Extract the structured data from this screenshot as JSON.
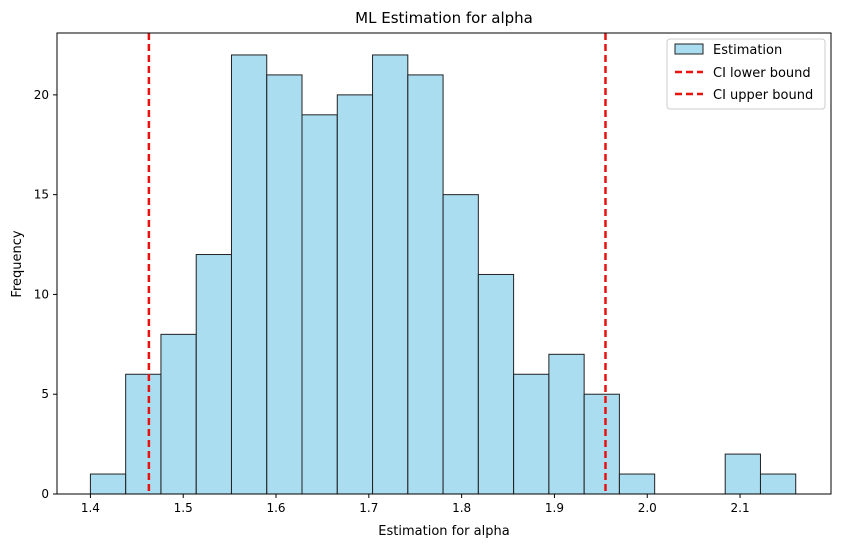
{
  "chart_data": {
    "type": "histogram",
    "title": "ML Estimation for alpha",
    "xlabel": "Estimation for alpha",
    "ylabel": "Frequency",
    "xlim": [
      1.364,
      2.198
    ],
    "ylim": [
      0,
      23.1
    ],
    "xticks": [
      1.4,
      1.5,
      1.6,
      1.7,
      1.8,
      1.9,
      2.0,
      2.1
    ],
    "yticks": [
      0,
      5,
      10,
      15,
      20
    ],
    "bins": {
      "start": 1.4,
      "width": 0.038,
      "counts": [
        1,
        6,
        8,
        12,
        22,
        21,
        19,
        20,
        22,
        21,
        15,
        11,
        6,
        7,
        5,
        1,
        0,
        0,
        2,
        1
      ]
    },
    "series": [
      {
        "name": "Estimation",
        "color": "#87ceeb",
        "edgecolor": "#222222"
      }
    ],
    "lines": [
      {
        "name": "CI lower bound",
        "x": 1.463,
        "color": "#e8120f",
        "style": "dashed"
      },
      {
        "name": "CI upper bound",
        "x": 1.955,
        "color": "#e8120f",
        "style": "dashed"
      }
    ],
    "legend": {
      "position": "top-right"
    }
  }
}
